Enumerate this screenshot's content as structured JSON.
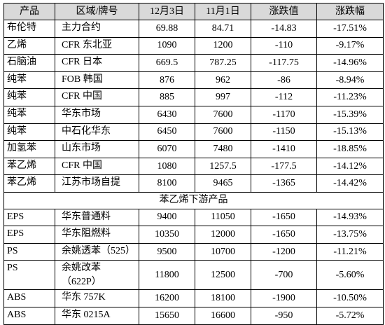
{
  "table": {
    "header": [
      "产品",
      "区域/牌号",
      "12月3日",
      "11月1日",
      "涨跌值",
      "涨跌幅"
    ],
    "rows": [
      [
        "布伦特",
        "主力合约",
        "69.88",
        "84.71",
        "-14.83",
        "-17.51%"
      ],
      [
        "乙烯",
        "CFR 东北亚",
        "1090",
        "1200",
        "-110",
        "-9.17%"
      ],
      [
        "石脑油",
        "CFR 日本",
        "669.5",
        "787.25",
        "-117.75",
        "-14.96%"
      ],
      [
        "纯苯",
        "FOB 韩国",
        "876",
        "962",
        "-86",
        "-8.94%"
      ],
      [
        "纯苯",
        "CFR 中国",
        "885",
        "997",
        "-112",
        "-11.23%"
      ],
      [
        "纯苯",
        "华东市场",
        "6430",
        "7600",
        "-1170",
        "-15.39%"
      ],
      [
        "纯苯",
        "中石化华东",
        "6450",
        "7600",
        "-1150",
        "-15.13%"
      ],
      [
        "加氢苯",
        "山东市场",
        "6070",
        "7480",
        "-1410",
        "-18.85%"
      ],
      [
        "苯乙烯",
        "CFR 中国",
        "1080",
        "1257.5",
        "-177.5",
        "-14.12%"
      ],
      [
        "苯乙烯",
        "江苏市场自提",
        "8100",
        "9465",
        "-1365",
        "-14.42%"
      ]
    ],
    "section": "苯乙烯下游产品",
    "sub_rows": [
      [
        "EPS",
        "华东普通料",
        "9400",
        "11050",
        "-1650",
        "-14.93%"
      ],
      [
        "EPS",
        "华东阻燃料",
        "10350",
        "12000",
        "-1650",
        "-13.75%"
      ],
      [
        "PS",
        "余姚透苯（525）",
        "9500",
        "10700",
        "-1200",
        "-11.21%"
      ],
      [
        "PS",
        [
          "余姚改苯",
          "（622P）"
        ],
        "11800",
        "12500",
        "-700",
        "-5.60%"
      ],
      [
        "ABS",
        "华东 757K",
        "16200",
        "18100",
        "-1900",
        "-10.50%"
      ],
      [
        "ABS",
        "华东 0215A",
        "15650",
        "16600",
        "-950",
        "-5.72%"
      ]
    ]
  }
}
